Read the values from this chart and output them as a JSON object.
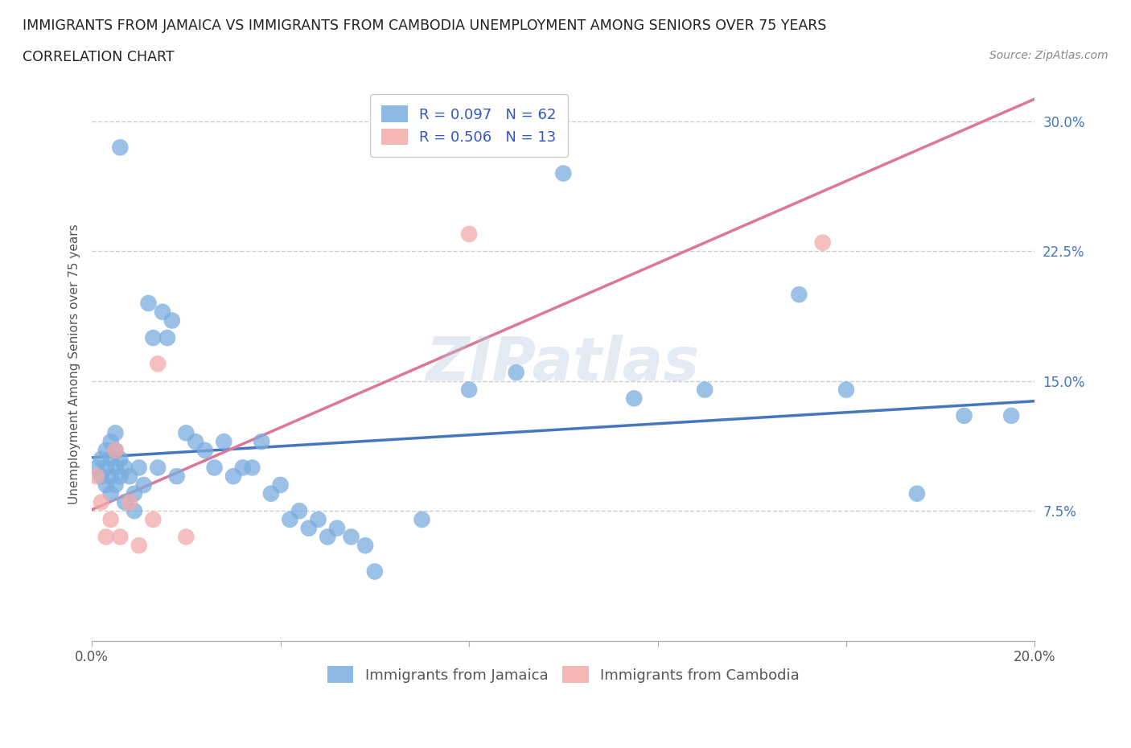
{
  "title_line1": "IMMIGRANTS FROM JAMAICA VS IMMIGRANTS FROM CAMBODIA UNEMPLOYMENT AMONG SENIORS OVER 75 YEARS",
  "title_line2": "CORRELATION CHART",
  "source": "Source: ZipAtlas.com",
  "ylabel": "Unemployment Among Seniors over 75 years",
  "xlim": [
    0.0,
    0.2
  ],
  "ylim": [
    0.0,
    0.32
  ],
  "xticks": [
    0.0,
    0.04,
    0.08,
    0.12,
    0.16,
    0.2
  ],
  "xticklabels": [
    "0.0%",
    "",
    "",
    "",
    "",
    "20.0%"
  ],
  "yticks": [
    0.0,
    0.075,
    0.15,
    0.225,
    0.3
  ],
  "yticklabels": [
    "",
    "7.5%",
    "15.0%",
    "22.5%",
    "30.0%"
  ],
  "grid_color": "#cccccc",
  "background_color": "#ffffff",
  "jamaica_color": "#7aaddf",
  "cambodia_color": "#f4aaaa",
  "jamaica_line_color": "#4477bb",
  "cambodia_line_color": "#dd7799",
  "jamaica_R": 0.097,
  "jamaica_N": 62,
  "cambodia_R": 0.506,
  "cambodia_N": 13,
  "legend_R_color": "#3355cc",
  "watermark": "ZIPatlas",
  "jamaica_scatter_x": [
    0.001,
    0.002,
    0.002,
    0.003,
    0.003,
    0.003,
    0.004,
    0.004,
    0.004,
    0.004,
    0.005,
    0.005,
    0.005,
    0.005,
    0.006,
    0.006,
    0.006,
    0.007,
    0.007,
    0.008,
    0.009,
    0.009,
    0.01,
    0.011,
    0.012,
    0.013,
    0.014,
    0.015,
    0.016,
    0.017,
    0.018,
    0.02,
    0.022,
    0.024,
    0.026,
    0.028,
    0.03,
    0.032,
    0.034,
    0.036,
    0.038,
    0.04,
    0.042,
    0.044,
    0.046,
    0.048,
    0.05,
    0.052,
    0.055,
    0.058,
    0.06,
    0.07,
    0.08,
    0.09,
    0.1,
    0.115,
    0.13,
    0.15,
    0.16,
    0.175,
    0.185,
    0.195
  ],
  "jamaica_scatter_y": [
    0.1,
    0.095,
    0.105,
    0.09,
    0.1,
    0.11,
    0.085,
    0.095,
    0.105,
    0.115,
    0.09,
    0.1,
    0.11,
    0.12,
    0.095,
    0.105,
    0.285,
    0.08,
    0.1,
    0.095,
    0.075,
    0.085,
    0.1,
    0.09,
    0.195,
    0.175,
    0.1,
    0.19,
    0.175,
    0.185,
    0.095,
    0.12,
    0.115,
    0.11,
    0.1,
    0.115,
    0.095,
    0.1,
    0.1,
    0.115,
    0.085,
    0.09,
    0.07,
    0.075,
    0.065,
    0.07,
    0.06,
    0.065,
    0.06,
    0.055,
    0.04,
    0.07,
    0.145,
    0.155,
    0.27,
    0.14,
    0.145,
    0.2,
    0.145,
    0.085,
    0.13,
    0.13
  ],
  "cambodia_scatter_x": [
    0.001,
    0.002,
    0.003,
    0.004,
    0.005,
    0.006,
    0.008,
    0.01,
    0.013,
    0.014,
    0.02,
    0.08,
    0.155
  ],
  "cambodia_scatter_y": [
    0.095,
    0.08,
    0.06,
    0.07,
    0.11,
    0.06,
    0.08,
    0.055,
    0.07,
    0.16,
    0.06,
    0.235,
    0.23
  ]
}
